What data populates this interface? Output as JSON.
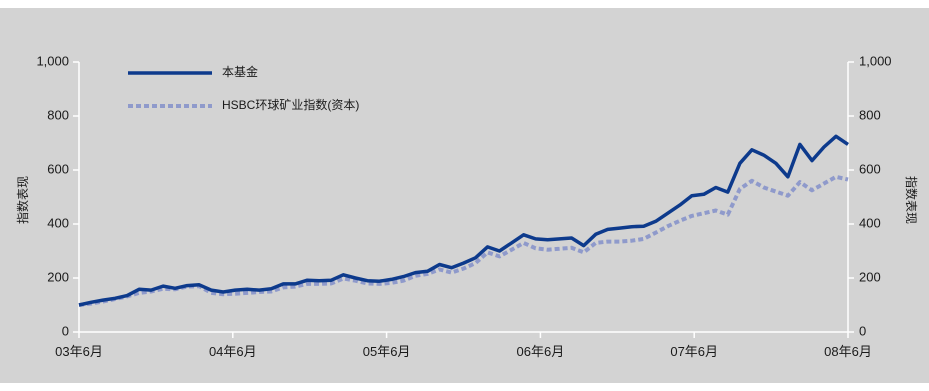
{
  "chart_data": {
    "type": "line",
    "title": "",
    "ylabel_left": "指数表现",
    "ylabel_right": "指数表现",
    "ylim": [
      0,
      1000
    ],
    "yticks": [
      "0",
      "200",
      "400",
      "600",
      "800",
      "1,000"
    ],
    "ytick_values": [
      0,
      200,
      400,
      600,
      800,
      1000
    ],
    "xlim": [
      0,
      60
    ],
    "xticks": [
      {
        "label": "03年6月",
        "pos": 0
      },
      {
        "label": "04年6月",
        "pos": 12
      },
      {
        "label": "05年6月",
        "pos": 24
      },
      {
        "label": "06年6月",
        "pos": 36
      },
      {
        "label": "07年6月",
        "pos": 48
      },
      {
        "label": "08年6月",
        "pos": 60
      }
    ],
    "legend_position": "top-left",
    "colors": {
      "background": "#d3d3d3",
      "fund": "#0d3a8c",
      "index": "#8f9acb",
      "axis": "#ffffff",
      "text": "#1a1a1a"
    },
    "series": [
      {
        "name": "本基金",
        "style": "solid",
        "values": [
          100,
          110,
          118,
          125,
          135,
          158,
          155,
          170,
          162,
          172,
          175,
          155,
          148,
          155,
          158,
          155,
          160,
          178,
          178,
          192,
          190,
          192,
          212,
          200,
          190,
          188,
          195,
          205,
          220,
          225,
          250,
          238,
          255,
          275,
          315,
          300,
          330,
          360,
          345,
          342,
          345,
          348,
          320,
          362,
          380,
          385,
          390,
          392,
          410,
          440,
          470,
          505,
          510,
          535,
          518,
          625,
          675,
          655,
          625,
          575,
          695,
          635,
          685,
          725,
          695
        ]
      },
      {
        "name": "HSBC环球矿业指数(资本)",
        "style": "dotted",
        "values": [
          100,
          105,
          113,
          122,
          132,
          145,
          150,
          160,
          158,
          168,
          170,
          145,
          140,
          142,
          145,
          148,
          150,
          165,
          168,
          178,
          178,
          180,
          198,
          190,
          180,
          178,
          182,
          190,
          208,
          215,
          232,
          220,
          235,
          255,
          295,
          280,
          305,
          330,
          310,
          305,
          308,
          312,
          295,
          330,
          335,
          335,
          338,
          345,
          368,
          392,
          412,
          430,
          440,
          450,
          435,
          530,
          560,
          535,
          520,
          505,
          555,
          525,
          550,
          575,
          565
        ]
      }
    ]
  }
}
